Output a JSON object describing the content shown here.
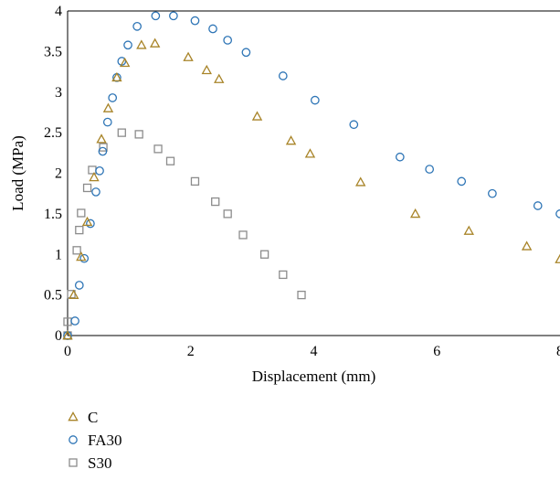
{
  "chart_data": {
    "type": "scatter",
    "xlabel": "Displacement (mm)",
    "ylabel": "Load (MPa)",
    "xlim": [
      0,
      8
    ],
    "ylim": [
      0,
      4
    ],
    "x_ticks": [
      "0",
      "2",
      "4",
      "6",
      "8"
    ],
    "y_ticks": [
      "0",
      "0.5",
      "1",
      "1.5",
      "2",
      "2.5",
      "3",
      "3.5",
      "4"
    ],
    "grid": false,
    "legend_position": "bottom-left",
    "series": [
      {
        "name": "C",
        "marker": "triangle",
        "color": "#A88428",
        "points": [
          [
            0.0,
            0.0
          ],
          [
            0.1,
            0.5
          ],
          [
            0.22,
            0.97
          ],
          [
            0.32,
            1.4
          ],
          [
            0.43,
            1.95
          ],
          [
            0.55,
            2.42
          ],
          [
            0.66,
            2.8
          ],
          [
            0.8,
            3.18
          ],
          [
            0.93,
            3.36
          ],
          [
            1.2,
            3.58
          ],
          [
            1.42,
            3.6
          ],
          [
            1.96,
            3.43
          ],
          [
            2.26,
            3.27
          ],
          [
            2.46,
            3.16
          ],
          [
            3.08,
            2.7
          ],
          [
            3.63,
            2.4
          ],
          [
            3.94,
            2.24
          ],
          [
            4.76,
            1.89
          ],
          [
            5.65,
            1.5
          ],
          [
            6.52,
            1.29
          ],
          [
            7.46,
            1.1
          ],
          [
            8.0,
            0.94
          ]
        ]
      },
      {
        "name": "FA30",
        "marker": "circle",
        "color": "#2E75B6",
        "points": [
          [
            0.0,
            0.0
          ],
          [
            0.12,
            0.18
          ],
          [
            0.19,
            0.62
          ],
          [
            0.27,
            0.95
          ],
          [
            0.37,
            1.38
          ],
          [
            0.46,
            1.77
          ],
          [
            0.52,
            2.03
          ],
          [
            0.57,
            2.27
          ],
          [
            0.65,
            2.63
          ],
          [
            0.73,
            2.93
          ],
          [
            0.8,
            3.18
          ],
          [
            0.88,
            3.38
          ],
          [
            0.98,
            3.58
          ],
          [
            1.13,
            3.81
          ],
          [
            1.43,
            3.94
          ],
          [
            1.72,
            3.94
          ],
          [
            2.07,
            3.88
          ],
          [
            2.36,
            3.78
          ],
          [
            2.6,
            3.64
          ],
          [
            2.9,
            3.49
          ],
          [
            3.5,
            3.2
          ],
          [
            4.02,
            2.9
          ],
          [
            4.65,
            2.6
          ],
          [
            5.4,
            2.2
          ],
          [
            5.88,
            2.05
          ],
          [
            6.4,
            1.9
          ],
          [
            6.9,
            1.75
          ],
          [
            7.64,
            1.6
          ],
          [
            8.0,
            1.5
          ]
        ]
      },
      {
        "name": "S30",
        "marker": "square",
        "color": "#8C8C8C",
        "points": [
          [
            0.0,
            0.0
          ],
          [
            0.0,
            0.17
          ],
          [
            0.06,
            0.51
          ],
          [
            0.15,
            1.05
          ],
          [
            0.19,
            1.3
          ],
          [
            0.22,
            1.51
          ],
          [
            0.32,
            1.82
          ],
          [
            0.4,
            2.04
          ],
          [
            0.58,
            2.32
          ],
          [
            0.88,
            2.5
          ],
          [
            1.16,
            2.48
          ],
          [
            1.47,
            2.3
          ],
          [
            1.67,
            2.15
          ],
          [
            2.07,
            1.9
          ],
          [
            2.4,
            1.65
          ],
          [
            2.6,
            1.5
          ],
          [
            2.85,
            1.24
          ],
          [
            3.2,
            1.0
          ],
          [
            3.5,
            0.75
          ],
          [
            3.8,
            0.5
          ]
        ]
      }
    ]
  }
}
